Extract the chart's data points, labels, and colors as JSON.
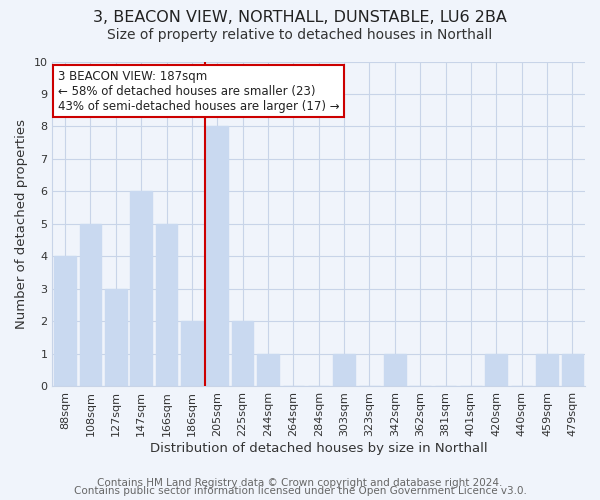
{
  "title": "3, BEACON VIEW, NORTHALL, DUNSTABLE, LU6 2BA",
  "subtitle": "Size of property relative to detached houses in Northall",
  "xlabel": "Distribution of detached houses by size in Northall",
  "ylabel": "Number of detached properties",
  "bar_labels": [
    "88sqm",
    "108sqm",
    "127sqm",
    "147sqm",
    "166sqm",
    "186sqm",
    "205sqm",
    "225sqm",
    "244sqm",
    "264sqm",
    "284sqm",
    "303sqm",
    "323sqm",
    "342sqm",
    "362sqm",
    "381sqm",
    "401sqm",
    "420sqm",
    "440sqm",
    "459sqm",
    "479sqm"
  ],
  "bar_values": [
    4,
    5,
    3,
    6,
    5,
    2,
    8,
    2,
    1,
    0,
    0,
    1,
    0,
    1,
    0,
    0,
    0,
    1,
    0,
    1,
    1
  ],
  "bar_color": "#c9d9f0",
  "vline_index": 5,
  "vline_color": "#cc0000",
  "annotation_line1": "3 BEACON VIEW: 187sqm",
  "annotation_line2": "← 58% of detached houses are smaller (23)",
  "annotation_line3": "43% of semi-detached houses are larger (17) →",
  "annotation_box_color": "#ffffff",
  "annotation_box_edge": "#cc0000",
  "ylim": [
    0,
    10
  ],
  "yticks": [
    0,
    1,
    2,
    3,
    4,
    5,
    6,
    7,
    8,
    9,
    10
  ],
  "footer1": "Contains HM Land Registry data © Crown copyright and database right 2024.",
  "footer2": "Contains public sector information licensed under the Open Government Licence v3.0.",
  "grid_color": "#c8d4e8",
  "title_fontsize": 11.5,
  "subtitle_fontsize": 10,
  "axis_label_fontsize": 9.5,
  "tick_fontsize": 8,
  "annotation_fontsize": 8.5,
  "footer_fontsize": 7.5,
  "bg_color": "#f0f4fb"
}
